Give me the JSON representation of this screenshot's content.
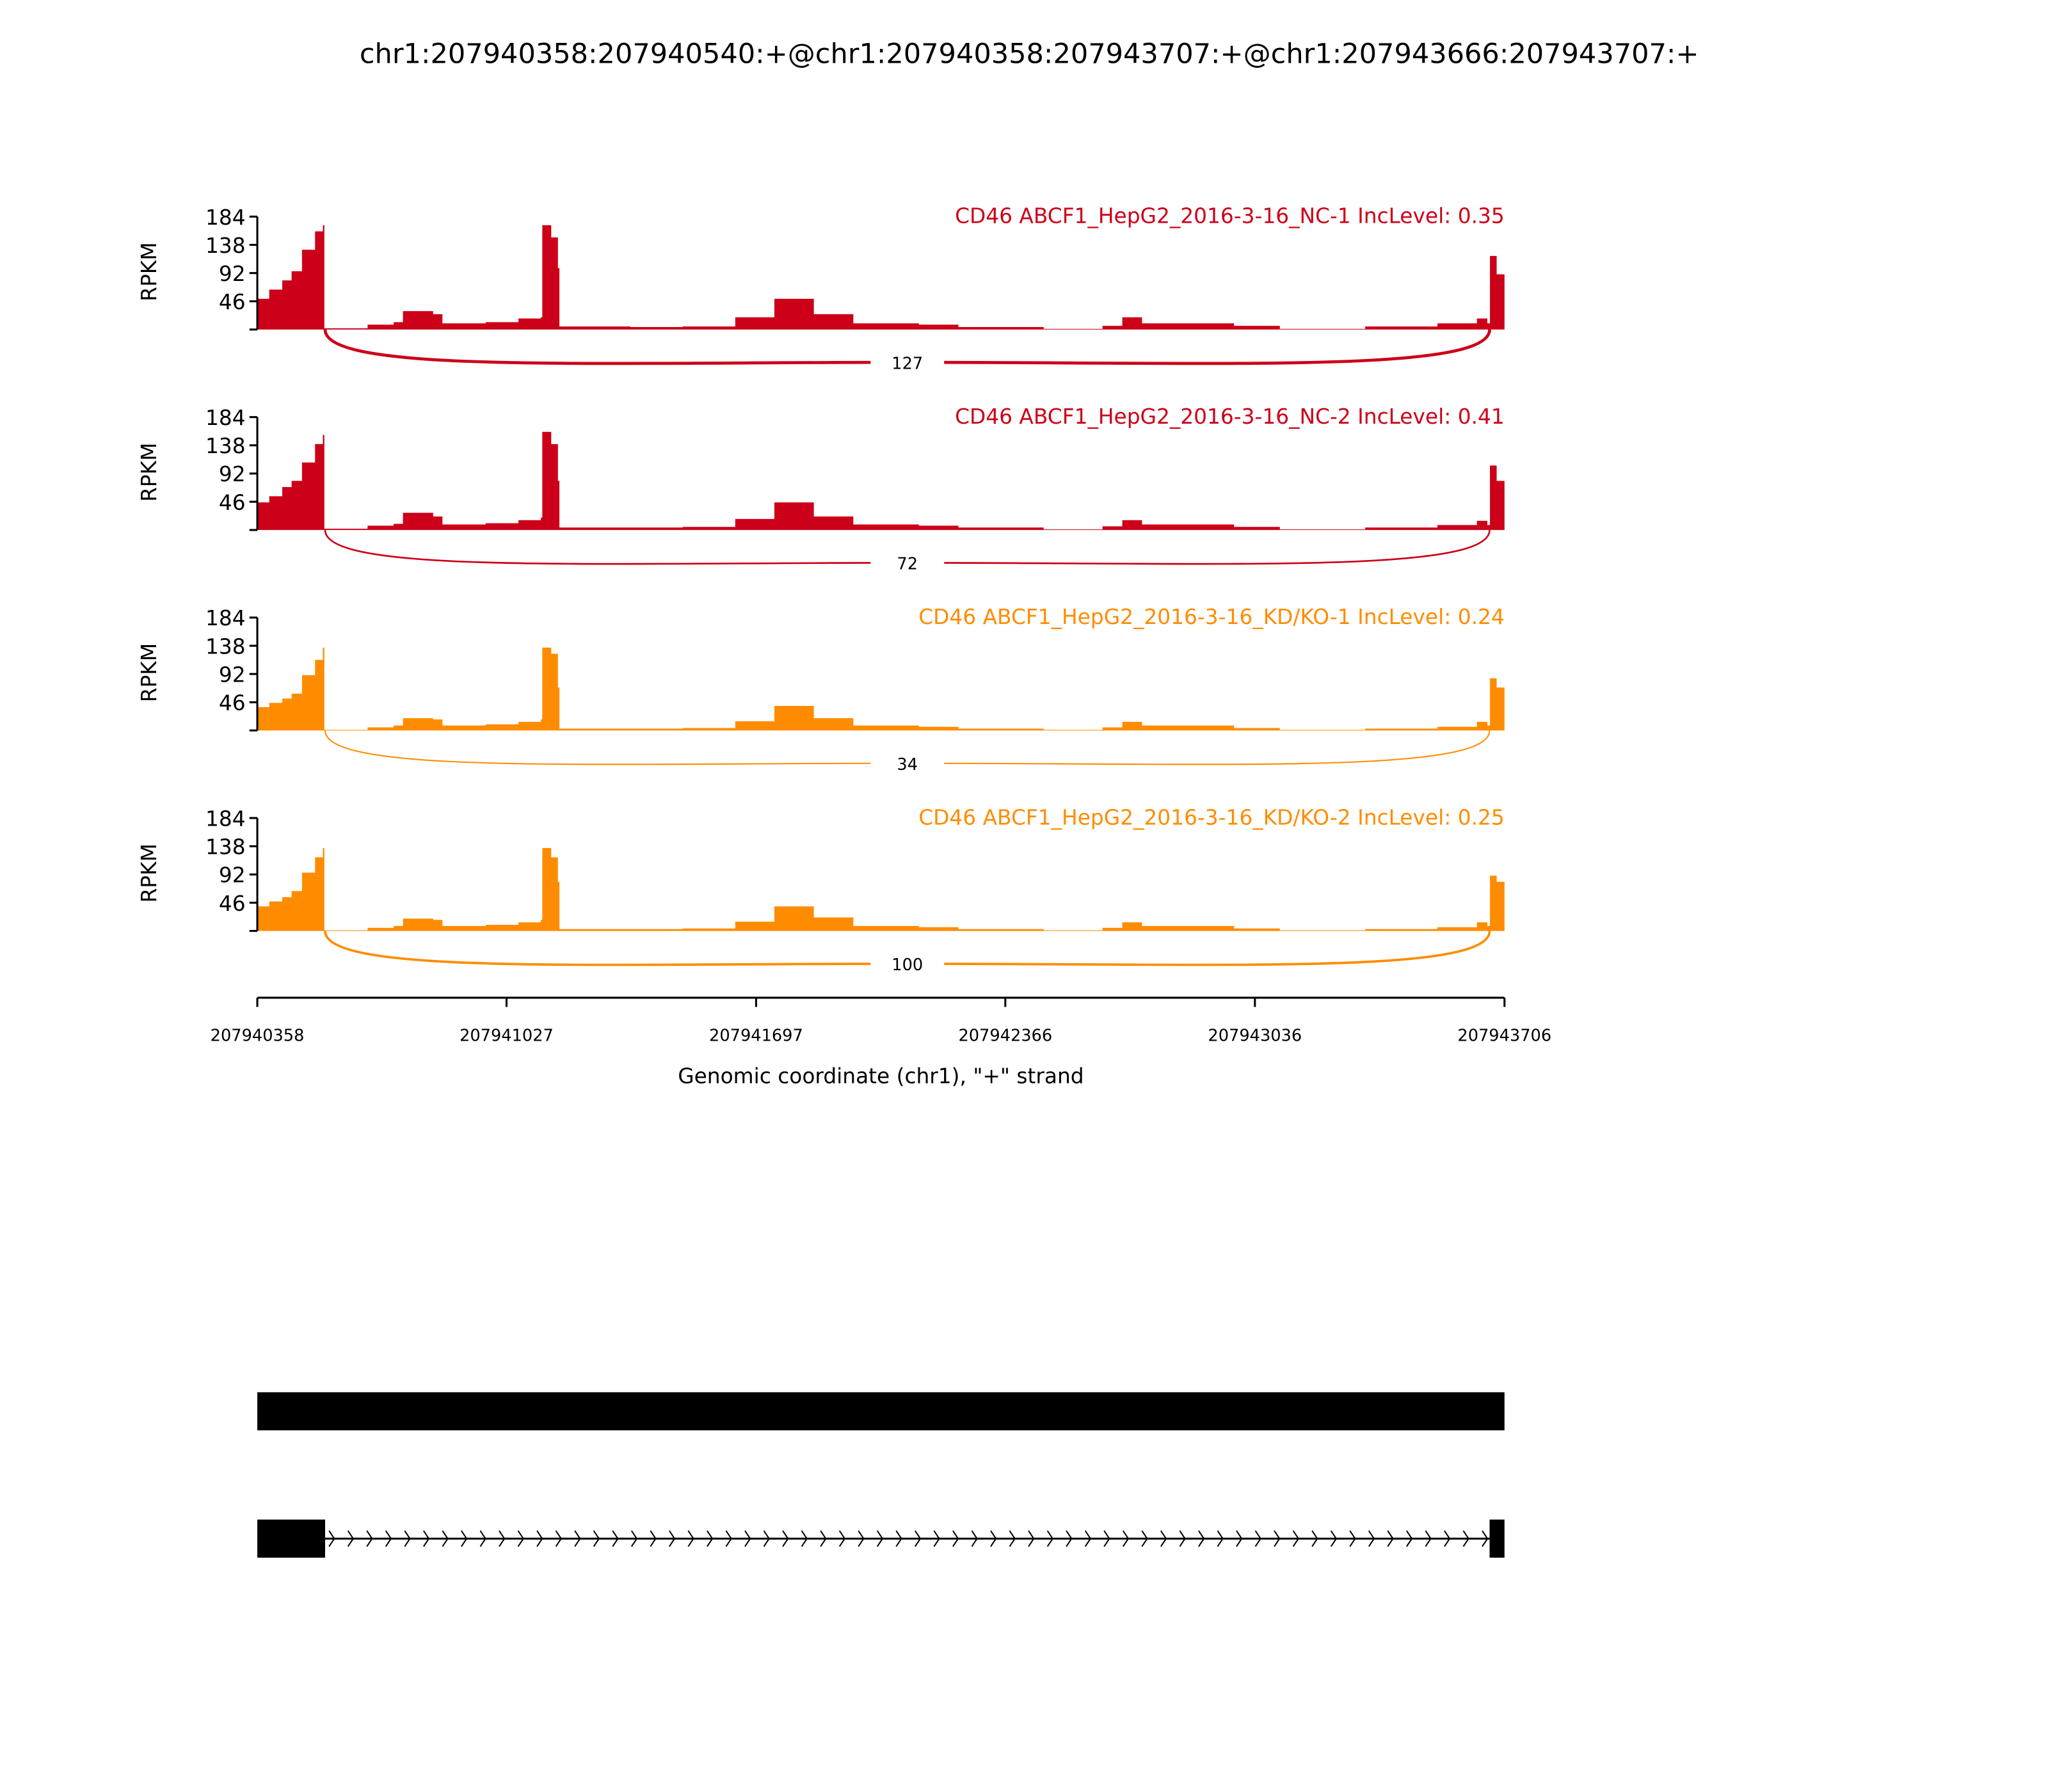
{
  "chart_data": {
    "type": "area",
    "title": "chr1:207940358:207940540:+@chr1:207940358:207943707:+@chr1:207943666:207943707:+",
    "xlabel": "Genomic coordinate (chr1), \"+\" strand",
    "ylabel": "RPKM",
    "xlim": [
      207940358,
      207943706
    ],
    "ylim": [
      0,
      184
    ],
    "yticks": [
      "46",
      "92",
      "138",
      "184"
    ],
    "xticks": [
      "207940358",
      "207941027",
      "207941697",
      "207942366",
      "207943036",
      "207943706"
    ],
    "grid": false,
    "coverage_offsets": [
      0,
      32,
      67,
      92,
      120,
      155,
      176,
      180,
      296,
      366,
      391,
      472,
      497,
      613,
      701,
      761,
      765,
      789,
      807,
      811,
      1001,
      1142,
      1283,
      1388,
      1494,
      1600,
      1776,
      1882,
      2111,
      2269,
      2322,
      2375,
      2622,
      2745,
      2974,
      3168,
      3274,
      3302,
      3309,
      3327,
      3348
    ],
    "series": [
      {
        "name": "CD46 ABCF1_HepG2_2016-3-16_NC-1 IncLevel: 0.35",
        "color": "#cc0018",
        "values": [
          50,
          65,
          80,
          95,
          130,
          160,
          170,
          2,
          8,
          12,
          30,
          25,
          10,
          12,
          18,
          20,
          170,
          150,
          100,
          5,
          4,
          5,
          20,
          50,
          25,
          10,
          8,
          4,
          1,
          6,
          20,
          10,
          6,
          1,
          5,
          10,
          18,
          10,
          120,
          90,
          70
        ],
        "junction": {
          "start": 207940540,
          "end": 207943666,
          "count": "127"
        }
      },
      {
        "name": "CD46 ABCF1_HepG2_2016-3-16_NC-2 IncLevel: 0.41",
        "color": "#cc0018",
        "values": [
          45,
          55,
          70,
          80,
          110,
          140,
          155,
          2,
          7,
          10,
          28,
          22,
          9,
          11,
          16,
          20,
          160,
          140,
          80,
          4,
          4,
          5,
          18,
          45,
          22,
          9,
          7,
          4,
          1,
          6,
          16,
          9,
          5,
          1,
          4,
          8,
          15,
          8,
          105,
          80,
          70
        ],
        "junction": {
          "start": 207940540,
          "end": 207943666,
          "count": "72"
        }
      },
      {
        "name": "CD46 ABCF1_HepG2_2016-3-16_KD/KO-1 IncLevel: 0.24",
        "color": "#ff8c00",
        "values": [
          38,
          45,
          52,
          60,
          90,
          115,
          135,
          1,
          5,
          8,
          20,
          18,
          8,
          10,
          14,
          18,
          135,
          125,
          70,
          3,
          3,
          4,
          15,
          40,
          20,
          8,
          6,
          3,
          1,
          5,
          14,
          8,
          4,
          1,
          3,
          6,
          14,
          8,
          85,
          70,
          45
        ],
        "junction": {
          "start": 207940540,
          "end": 207943666,
          "count": "34"
        }
      },
      {
        "name": "CD46 ABCF1_HepG2_2016-3-16_KD/KO-2 IncLevel: 0.25",
        "color": "#ff8c00",
        "values": [
          40,
          48,
          55,
          65,
          95,
          120,
          135,
          1,
          5,
          8,
          20,
          18,
          8,
          10,
          14,
          18,
          135,
          120,
          80,
          3,
          3,
          4,
          15,
          40,
          22,
          8,
          6,
          3,
          1,
          5,
          14,
          8,
          4,
          1,
          3,
          6,
          14,
          8,
          90,
          80,
          50
        ],
        "junction": {
          "start": 207940540,
          "end": 207943666,
          "count": "100"
        }
      }
    ],
    "gene_models": [
      {
        "exons": [
          [
            207940358,
            207943706
          ]
        ]
      },
      {
        "exons": [
          [
            207940358,
            207940540
          ],
          [
            207943666,
            207943706
          ]
        ],
        "strand": "+"
      }
    ]
  }
}
